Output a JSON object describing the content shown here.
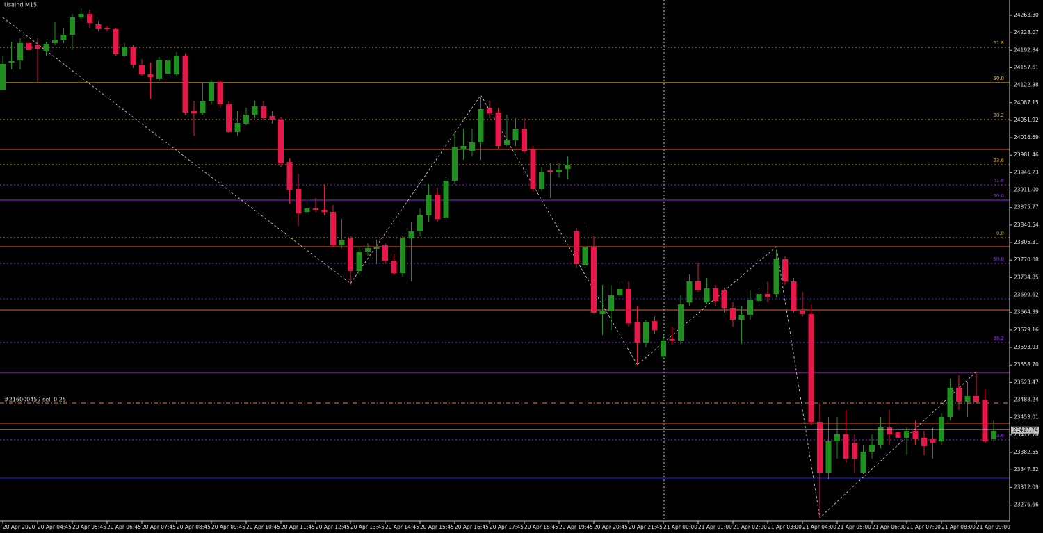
{
  "chart_data": {
    "type": "candlestick",
    "title": "UsaInd,M15",
    "categories": [
      "20 Apr 2020",
      null,
      null,
      null,
      "20 Apr 04:45",
      null,
      null,
      null,
      "20 Apr 05:45",
      null,
      null,
      null,
      "20 Apr 06:45",
      null,
      null,
      null,
      "20 Apr 07:45",
      null,
      null,
      null,
      "20 Apr 08:45",
      null,
      null,
      null,
      "20 Apr 09:45",
      null,
      null,
      null,
      "20 Apr 10:45",
      null,
      null,
      null,
      "20 Apr 11:45",
      null,
      null,
      null,
      "20 Apr 12:45",
      null,
      null,
      null,
      "20 Apr 13:45",
      null,
      null,
      null,
      "20 Apr 14:45",
      null,
      null,
      null,
      "20 Apr 15:45",
      null,
      null,
      null,
      "20 Apr 16:45",
      null,
      null,
      null,
      "20 Apr 17:45",
      null,
      null,
      null,
      "20 Apr 18:45",
      null,
      null,
      null,
      "20 Apr 19:45",
      null,
      null,
      null,
      "20 Apr 20:45",
      null,
      null,
      null,
      "20 Apr 21:45",
      null,
      null,
      null,
      "21 Apr 00:00",
      null,
      null,
      null,
      "21 Apr 01:00",
      null,
      null,
      null,
      "21 Apr 02:00",
      null,
      null,
      null,
      "21 Apr 03:00",
      null,
      null,
      null,
      "21 Apr 04:00",
      null,
      null,
      null,
      "21 Apr 05:00",
      null,
      null,
      null,
      "21 Apr 06:00",
      null,
      null,
      null,
      "21 Apr 07:00",
      null,
      null,
      null,
      "21 Apr 08:00",
      null,
      null,
      null,
      "21 Apr 09:00",
      null,
      null
    ],
    "open": [
      24112,
      24168,
      24172.2,
      24207.2,
      24203,
      24191.8,
      24207.2,
      24212.8,
      24224,
      24259,
      24266,
      24245,
      24238,
      24235.2,
      24182,
      24198.8,
      24163.8,
      24144.2,
      24135.8,
      24145.6,
      24144.2,
      24182,
      24070,
      24065.8,
      24091,
      24128.8,
      24084,
      24028,
      24044.8,
      24063,
      24079.8,
      24060.2,
      24053.2,
      23967.8,
      23913.2,
      23867,
      23874,
      23871.2,
      23867,
      23799.8,
      23813.8,
      23748,
      23787.2,
      23792.8,
      23799.8,
      23769,
      23743.8,
      23813.8,
      23827.8,
      23860,
      23902,
      23855.8,
      23930,
      23993,
      23990.2,
      24007,
      24077,
      24067.2,
      24002.8,
      24011.2,
      24035,
      23993,
      23913.2,
      23951,
      23946.8,
      23953.8,
      23827.8,
      23759.2,
      23797,
      23661.2,
      23666.8,
      23699,
      23711.6,
      23645.8,
      23603.8,
      23647.2,
      23575.8,
      23610.8,
      23608,
      23685,
      23727,
      23685,
      23713,
      23708.8,
      23673.8,
      23650,
      23659.8,
      23687.8,
      23701.8,
      23701.8,
      23771.8,
      23727,
      23668.2,
      23661.2,
      23444.2,
      23342,
      23405,
      23419,
      23402.2,
      23342,
      23384,
      23398,
      23433,
      23423.2,
      23412,
      23426,
      23412,
      23409.2,
      23405,
      23454,
      23512.8,
      23484.8,
      23496,
      23489,
      23409.2
    ],
    "high": [
      24182,
      24210,
      24217,
      24217,
      24217,
      24210,
      24249.2,
      24238,
      24266,
      24277.2,
      24274.4,
      24252,
      24240.8,
      24238,
      24207.2,
      24203,
      24175,
      24168,
      24179.2,
      24175,
      24189,
      24186.2,
      24091,
      24126,
      24133,
      24133,
      24091,
      24070,
      24077,
      24091,
      24091,
      24070,
      24058.8,
      23974.8,
      23944,
      23902,
      23895,
      23923,
      23881,
      23853,
      23818,
      23797,
      23804,
      23811,
      23804,
      23783,
      23818,
      23846,
      23874,
      23923,
      23916,
      23937,
      24028,
      24035,
      24035,
      24098,
      24091,
      24077,
      24063,
      24056,
      24056,
      24000,
      23958,
      23965,
      23965,
      23979,
      23834.8,
      23839,
      23818,
      23720,
      23720,
      23727,
      23727,
      23678,
      23650,
      23657,
      23622,
      23636,
      23699,
      23741,
      23764.8,
      23734,
      23720,
      23713,
      23685,
      23678,
      23708.8,
      23713,
      23727,
      23790,
      23778.8,
      23734,
      23706,
      23680.8,
      23482,
      23454,
      23454,
      23468,
      23419,
      23398,
      23419,
      23454,
      23468,
      23454,
      23433,
      23447,
      23426,
      23433,
      23461,
      23531,
      23538,
      23524,
      23545,
      23510,
      23447
    ],
    "low": [
      24112,
      24154,
      24154,
      24182,
      24128.8,
      24182,
      24203,
      24207.2,
      24193.2,
      24252,
      24238,
      24231,
      24231,
      24182,
      24179.2,
      24156.8,
      24140,
      24095.2,
      24131.6,
      24140,
      24140,
      24063,
      24021,
      24063,
      24084,
      24077,
      24025.2,
      24021,
      24042,
      24056,
      24053.2,
      24044.8,
      23958,
      23883.8,
      23839,
      23860,
      23867,
      23860,
      23797,
      23794.2,
      23720,
      23741,
      23778.8,
      23762,
      23762,
      23741,
      23736.8,
      23727,
      23818,
      23846,
      23846,
      23846,
      23923,
      23972,
      23979,
      23972,
      24056,
      23993,
      24000,
      24000,
      23986,
      23909,
      23909,
      23895,
      23937,
      23932.8,
      23755,
      23755,
      23661.2,
      23619.2,
      23629,
      23699,
      23636,
      23559,
      23594,
      23622,
      23573,
      23601,
      23601,
      23678,
      23706,
      23680.8,
      23678,
      23664,
      23636,
      23601,
      23650,
      23685,
      23685,
      23694.8,
      23720,
      23664,
      23657,
      23437.2,
      23251,
      23328,
      23370,
      23363,
      23342,
      23339.2,
      23370,
      23391,
      23398,
      23398,
      23377,
      23398,
      23377,
      23370,
      23398,
      23447,
      23468,
      23454,
      23482,
      23402.2,
      23405
    ],
    "close": [
      24165.2,
      24170.8,
      24207.2,
      24193.2,
      24196,
      24205.8,
      24214.2,
      24224,
      24259,
      24266,
      24247.8,
      24235.2,
      24235.2,
      24184.8,
      24198.8,
      24163.8,
      24144.2,
      24138.6,
      24173.6,
      24172.2,
      24182,
      24067.2,
      24065.8,
      24091,
      24128.8,
      24084,
      24028,
      24046.2,
      24063,
      24079.8,
      24056,
      24053.2,
      23965,
      23911.8,
      23864.2,
      23874,
      23871.2,
      23867,
      23799.8,
      23811,
      23748,
      23787.2,
      23794.2,
      23797,
      23769,
      23743.8,
      23813.8,
      23827.8,
      23860,
      23902,
      23853,
      23930,
      23997.2,
      24000,
      24007,
      24074.2,
      24065.8,
      24000,
      24011.2,
      24035,
      23988.8,
      23913.2,
      23946.8,
      23946.8,
      23952.4,
      23962.2,
      23762,
      23797,
      23664,
      23666.8,
      23699,
      23711.6,
      23643,
      23603.8,
      23645.8,
      23629,
      23608,
      23608,
      23680.8,
      23727,
      23708.8,
      23713,
      23687.8,
      23673.8,
      23650,
      23659.8,
      23689.2,
      23701.8,
      23696.2,
      23771.8,
      23727,
      23668.2,
      23661.2,
      23444.2,
      23342,
      23405,
      23419,
      23370,
      23370,
      23384,
      23398,
      23433,
      23419,
      23412,
      23426,
      23409.2,
      23395.2,
      23402.2,
      23454,
      23512.8,
      23484.8,
      23496,
      23484.8,
      23405,
      23426
    ],
    "up_color": "#1f8f1f",
    "down_color": "#e8174a",
    "ylim": [
      23244,
      24294
    ],
    "yticks": [
      {
        "value": 24263.3,
        "label": "24263.30"
      },
      {
        "value": 24228.07,
        "label": "24228.07"
      },
      {
        "value": 24192.84,
        "label": "24192.84"
      },
      {
        "value": 24157.61,
        "label": "24157.61"
      },
      {
        "value": 24122.38,
        "label": "24122.38"
      },
      {
        "value": 24087.15,
        "label": "24087.15"
      },
      {
        "value": 24051.92,
        "label": "24051.92"
      },
      {
        "value": 24016.69,
        "label": "24016.69"
      },
      {
        "value": 23981.46,
        "label": "23981.46"
      },
      {
        "value": 23946.23,
        "label": "23946.23"
      },
      {
        "value": 23911,
        "label": "23911.00"
      },
      {
        "value": 23875.77,
        "label": "23875.77"
      },
      {
        "value": 23840.54,
        "label": "23840.54"
      },
      {
        "value": 23805.31,
        "label": "23805.31"
      },
      {
        "value": 23770.08,
        "label": "23770.08"
      },
      {
        "value": 23734.85,
        "label": "23734.85"
      },
      {
        "value": 23699.62,
        "label": "23699.62"
      },
      {
        "value": 23664.39,
        "label": "23664.39"
      },
      {
        "value": 23629.16,
        "label": "23629.16"
      },
      {
        "value": 23593.93,
        "label": "23593.93"
      },
      {
        "value": 23558.7,
        "label": "23558.70"
      },
      {
        "value": 23523.47,
        "label": "23523.47"
      },
      {
        "value": 23488.24,
        "label": "23488.24"
      },
      {
        "value": 23453.01,
        "label": "23453.01"
      },
      {
        "value": 23417.78,
        "label": "23417.78"
      },
      {
        "value": 23382.55,
        "label": "23382.55"
      },
      {
        "value": 23347.32,
        "label": "23347.32"
      },
      {
        "value": 23312.09,
        "label": "23312.09"
      },
      {
        "value": 23276.66,
        "label": "23276.66"
      }
    ],
    "levels": [
      {
        "value": 24198.8,
        "color": "#c8a000",
        "style": "dot",
        "label": "61.8"
      },
      {
        "value": 24127.4,
        "color": "#f0c040",
        "style": "solid",
        "label": "50.0"
      },
      {
        "value": 24053.2,
        "color": "#c8a000",
        "style": "dot",
        "label": "38.2"
      },
      {
        "value": 23993,
        "color": "#f05a28",
        "style": "solid"
      },
      {
        "value": 23962.2,
        "color": "#c8a000",
        "style": "dot",
        "label": "23.6"
      },
      {
        "value": 23921.6,
        "color": "#8a2be2",
        "style": "dot",
        "label": "61.8"
      },
      {
        "value": 23890.8,
        "color": "#8a2be2",
        "style": "solid",
        "label": "50.0"
      },
      {
        "value": 23815.2,
        "color": "#c8a000",
        "style": "dot",
        "label": "0.0"
      },
      {
        "value": 23797,
        "color": "#f05a28",
        "style": "solid"
      },
      {
        "value": 23763.4,
        "color": "#8a2be2",
        "style": "dot",
        "label": "50.0"
      },
      {
        "value": 23692,
        "color": "#3030e0",
        "style": "dot"
      },
      {
        "value": 23669.6,
        "color": "#f05a28",
        "style": "solid"
      },
      {
        "value": 23603.8,
        "color": "#8a2be2",
        "style": "dot",
        "label": "38.2"
      },
      {
        "value": 23543.6,
        "color": "#c030e0",
        "style": "solid"
      },
      {
        "value": 23482,
        "color": "#f08020",
        "style": "dashdot",
        "label": "#216000459 sell 0.25"
      },
      {
        "value": 23441.4,
        "color": "#f05a28",
        "style": "solid"
      },
      {
        "value": 23407.8,
        "color": "#8a2be2",
        "style": "dot",
        "label": "23.6"
      },
      {
        "value": 23330.8,
        "color": "#2020ff",
        "style": "solid"
      }
    ],
    "current_price": 23427.74,
    "zigzag": {
      "x": [
        0,
        40,
        55,
        73,
        89,
        94,
        112
      ],
      "values": [
        24259,
        23722.8,
        24102.2,
        23559,
        23797,
        23251,
        23545
      ]
    }
  }
}
